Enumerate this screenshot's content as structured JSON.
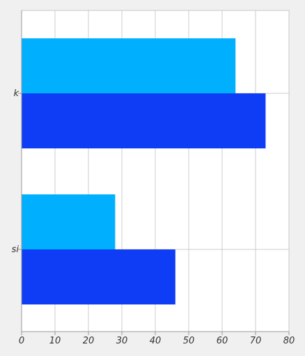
{
  "chart_data": {
    "type": "bar",
    "orientation": "horizontal",
    "categories": [
      "k",
      "si"
    ],
    "series": [
      {
        "color": "#00b0ff",
        "values": [
          64,
          28
        ]
      },
      {
        "color": "#0f3cf5",
        "values": [
          73,
          46
        ]
      }
    ],
    "xlim": [
      0,
      80
    ],
    "x_ticks": [
      "0",
      "10",
      "20",
      "30",
      "40",
      "50",
      "60",
      "70",
      "80"
    ],
    "grid": true,
    "legend": "none",
    "title": "",
    "xlabel": "",
    "ylabel": ""
  }
}
